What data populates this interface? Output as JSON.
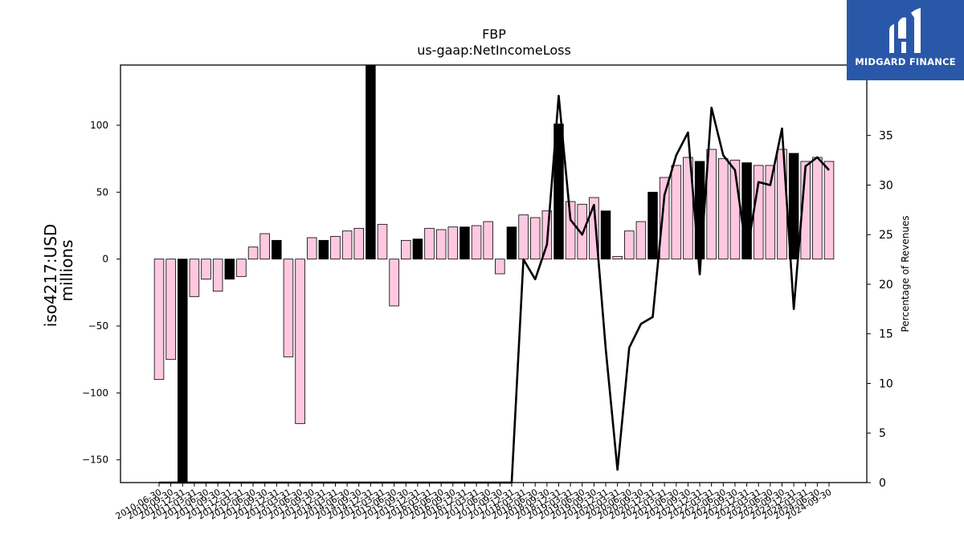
{
  "chart_data": {
    "type": "bar",
    "title": "FBP",
    "subtitle": "us-gaap:NetIncomeLoss",
    "ylabel_line1": "iso4217:USD",
    "ylabel_line2": "millions",
    "y2label": "Percentage of Revenues",
    "ylim": [
      -167,
      145
    ],
    "y2lim": [
      0,
      42.1
    ],
    "yticks": [
      -150,
      -100,
      -50,
      0,
      50,
      100
    ],
    "y2ticks": [
      0,
      5,
      10,
      15,
      20,
      25,
      30,
      35
    ],
    "colors": {
      "quarter_bar": "#ffc8e1",
      "annual_bar": "#000000",
      "line": "#000000"
    },
    "categories": [
      "2010-06-30",
      "2010-09-30",
      "2010-12-31",
      "2011-03-31",
      "2011-06-30",
      "2011-09-30",
      "2011-12-31",
      "2012-03-31",
      "2012-06-30",
      "2012-09-30",
      "2012-12-31",
      "2013-03-31",
      "2013-06-30",
      "2013-09-30",
      "2013-12-31",
      "2014-03-31",
      "2014-06-30",
      "2014-09-30",
      "2014-12-31",
      "2015-03-31",
      "2015-06-30",
      "2015-09-30",
      "2015-12-31",
      "2016-03-31",
      "2016-06-30",
      "2016-09-30",
      "2016-12-31",
      "2017-03-31",
      "2017-06-30",
      "2017-09-30",
      "2017-12-31",
      "2018-03-31",
      "2018-06-30",
      "2018-09-30",
      "2018-12-31",
      "2019-03-31",
      "2019-06-30",
      "2019-09-30",
      "2019-12-31",
      "2020-03-31",
      "2020-06-30",
      "2020-09-30",
      "2020-12-31",
      "2021-03-31",
      "2021-06-30",
      "2021-09-30",
      "2021-12-31",
      "2022-03-31",
      "2022-06-30",
      "2022-09-30",
      "2022-12-31",
      "2023-03-31",
      "2023-06-30",
      "2023-09-30",
      "2023-12-31",
      "2024-03-31",
      "2024-06-30",
      "2024-09-30"
    ],
    "series": [
      {
        "values": [
          -90,
          -75,
          -167,
          -28,
          -15,
          -24,
          -15,
          -13,
          9,
          19,
          14,
          -73,
          -123,
          16,
          14,
          17,
          21,
          23,
          145,
          26,
          -35,
          14,
          15,
          23,
          22,
          24,
          24,
          25,
          28,
          -11,
          24,
          33,
          31,
          36,
          101,
          43,
          41,
          46,
          36,
          2,
          21,
          28,
          50,
          61,
          70,
          76,
          73,
          82,
          75,
          74,
          72,
          70,
          70,
          82,
          79,
          73,
          76,
          73
        ],
        "kinds": [
          "q",
          "q",
          "a",
          "q",
          "q",
          "q",
          "a",
          "q",
          "q",
          "q",
          "a",
          "q",
          "q",
          "q",
          "a",
          "q",
          "q",
          "q",
          "a",
          "q",
          "q",
          "q",
          "a",
          "q",
          "q",
          "q",
          "a",
          "q",
          "q",
          "q",
          "a",
          "q",
          "q",
          "q",
          "a",
          "q",
          "q",
          "q",
          "a",
          "q",
          "q",
          "q",
          "a",
          "q",
          "q",
          "q",
          "a",
          "q",
          "q",
          "q",
          "a",
          "q",
          "q",
          "q",
          "a",
          "q",
          "q",
          "q"
        ]
      },
      {
        "axis": "right",
        "values": [
          0,
          0,
          0,
          0,
          0,
          0,
          0,
          0,
          0,
          0,
          0,
          0,
          0,
          0,
          0,
          0,
          0,
          0,
          0,
          0,
          0,
          0,
          0,
          0,
          0,
          0,
          0,
          0,
          0,
          0,
          0,
          22.5,
          20.5,
          24,
          39,
          26.5,
          25,
          28,
          13.5,
          1.3,
          13.6,
          16,
          16.7,
          29,
          33,
          35.3,
          21,
          37.8,
          33,
          31.5,
          23,
          30.3,
          30,
          35.7,
          17.5,
          31.9,
          32.8,
          31.5
        ]
      }
    ]
  },
  "logo": {
    "text": "MIDGARD FINANCE",
    "icon": "midgard-bars-icon"
  }
}
